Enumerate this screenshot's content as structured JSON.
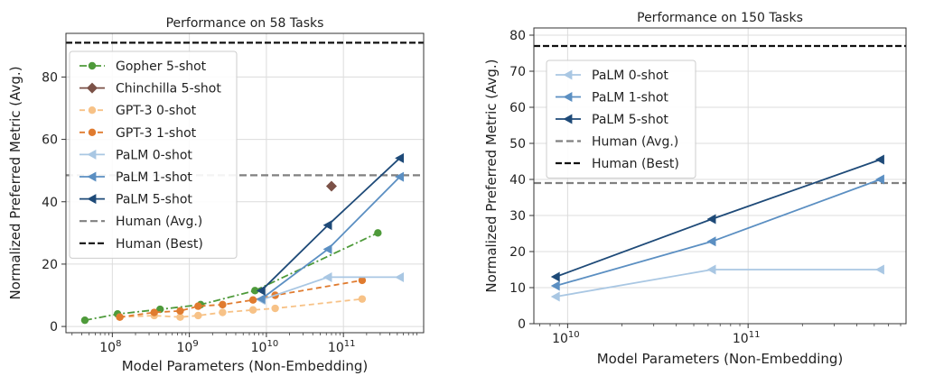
{
  "chart_data": [
    {
      "type": "line",
      "title": "Performance on 58 Tasks",
      "xlabel": "Model Parameters (Non-Embedding)",
      "ylabel": "Normalized Preferred Metric (Avg.)",
      "xscale": "log",
      "xlim": [
        25000000.0,
        1100000000000.0
      ],
      "ylim": [
        -2,
        94
      ],
      "xticks": [
        {
          "value": 100000000.0,
          "base": "10",
          "exp": "8"
        },
        {
          "value": 1000000000.0,
          "base": "10",
          "exp": "9"
        },
        {
          "value": 10000000000.0,
          "base": "10",
          "exp": "10"
        },
        {
          "value": 100000000000.0,
          "base": "10",
          "exp": "11"
        }
      ],
      "yticks": [
        0,
        20,
        40,
        60,
        80
      ],
      "grid": true,
      "legend": "upper-left",
      "series": [
        {
          "name": "Gopher 5-shot",
          "color": "#4e9a3a",
          "dash": "8 3 2 3",
          "marker": "circle",
          "x": [
            44000000.0,
            117000000.0,
            417000000.0,
            1400000000.0,
            7100000000.0,
            280000000000.0
          ],
          "y": [
            2,
            4,
            5.5,
            7,
            11.5,
            30
          ]
        },
        {
          "name": "Chinchilla 5-shot",
          "color": "#7b5147",
          "dash": "",
          "marker": "diamond",
          "x": [
            70000000000.0
          ],
          "y": [
            45
          ]
        },
        {
          "name": "GPT-3 0-shot",
          "color": "#f7c287",
          "dash": "6 4",
          "marker": "circle",
          "x": [
            125000000.0,
            350000000.0,
            760000000.0,
            1300000000.0,
            2700000000.0,
            6700000000.0,
            13000000000.0,
            175000000000.0
          ],
          "y": [
            3,
            3.5,
            3,
            3.5,
            4.5,
            5.3,
            5.8,
            8.8
          ]
        },
        {
          "name": "GPT-3 1-shot",
          "color": "#e07b2f",
          "dash": "6 4",
          "marker": "circle",
          "x": [
            125000000.0,
            350000000.0,
            760000000.0,
            1300000000.0,
            2700000000.0,
            6700000000.0,
            13000000000.0,
            175000000000.0
          ],
          "y": [
            3,
            4.5,
            5,
            6.5,
            7,
            8.5,
            10,
            14.8
          ]
        },
        {
          "name": "PaLM 0-shot",
          "color": "#a9c7e3",
          "dash": "",
          "marker": "triangle-left",
          "x": [
            8600000000.0,
            63000000000.0,
            540000000000.0
          ],
          "y": [
            8.5,
            15.8,
            15.8
          ]
        },
        {
          "name": "PaLM 1-shot",
          "color": "#5b8fc2",
          "dash": "",
          "marker": "triangle-left",
          "x": [
            8600000000.0,
            63000000000.0,
            540000000000.0
          ],
          "y": [
            8.8,
            24.8,
            48
          ]
        },
        {
          "name": "PaLM 5-shot",
          "color": "#1e4a78",
          "dash": "",
          "marker": "triangle-left",
          "x": [
            8600000000.0,
            63000000000.0,
            540000000000.0
          ],
          "y": [
            11.5,
            32.5,
            54
          ]
        }
      ],
      "hlines": [
        {
          "name": "Human (Avg.)",
          "y": 48.5,
          "color": "#808080",
          "dash": "8 4",
          "width": 2.2
        },
        {
          "name": "Human (Best)",
          "y": 91,
          "color": "#111111",
          "dash": "7 3",
          "width": 2.2
        }
      ]
    },
    {
      "type": "line",
      "title": "Performance on 150 Tasks",
      "xlabel": "Model Parameters (Non-Embedding)",
      "ylabel": "Normalized Preferred Metric (Avg.)",
      "xscale": "log",
      "xlim": [
        6500000000.0,
        750000000000.0
      ],
      "ylim": [
        0,
        82
      ],
      "xticks": [
        {
          "value": 10000000000.0,
          "base": "10",
          "exp": "10"
        },
        {
          "value": 100000000000.0,
          "base": "10",
          "exp": "11"
        }
      ],
      "yticks": [
        0,
        10,
        20,
        30,
        40,
        50,
        60,
        70,
        80
      ],
      "grid": true,
      "legend": "upper-left",
      "series": [
        {
          "name": "PaLM 0-shot",
          "color": "#a9c7e3",
          "dash": "",
          "marker": "triangle-left",
          "x": [
            8600000000.0,
            63000000000.0,
            540000000000.0
          ],
          "y": [
            7.5,
            15,
            15
          ]
        },
        {
          "name": "PaLM 1-shot",
          "color": "#5b8fc2",
          "dash": "",
          "marker": "triangle-left",
          "x": [
            8600000000.0,
            63000000000.0,
            540000000000.0
          ],
          "y": [
            10.5,
            22.8,
            40
          ]
        },
        {
          "name": "PaLM 5-shot",
          "color": "#1e4a78",
          "dash": "",
          "marker": "triangle-left",
          "x": [
            8600000000.0,
            63000000000.0,
            540000000000.0
          ],
          "y": [
            13,
            29,
            45.5
          ]
        }
      ],
      "hlines": [
        {
          "name": "Human (Avg.)",
          "y": 39,
          "color": "#808080",
          "dash": "8 4",
          "width": 2.2
        },
        {
          "name": "Human (Best)",
          "y": 77,
          "color": "#111111",
          "dash": "7 3",
          "width": 2.2
        }
      ]
    }
  ]
}
